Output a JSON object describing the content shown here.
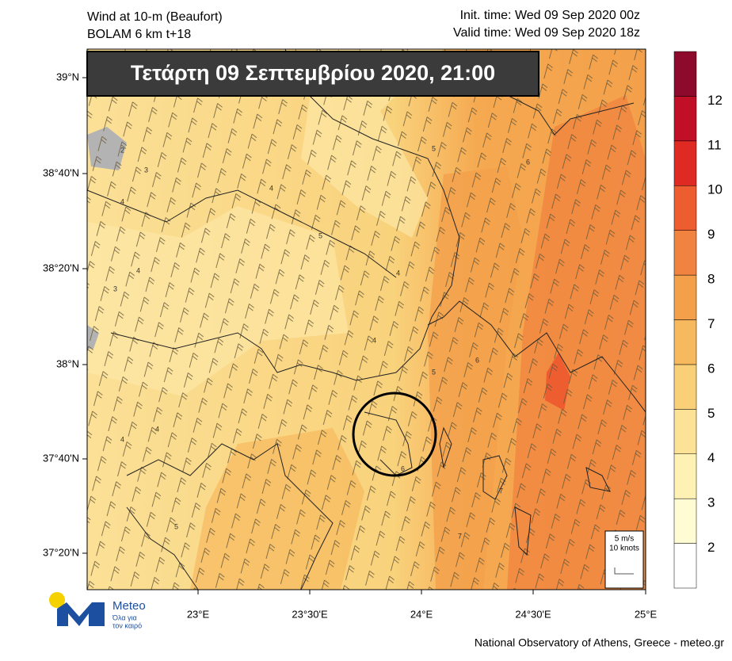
{
  "header": {
    "title": "Wind at 10-m (Beaufort)",
    "model": "BOLAM 6 km t+18",
    "init_time": "Init. time: Wed 09 Sep 2020 00z",
    "valid_time": "Valid time: Wed 09 Sep 2020 18z"
  },
  "banner": "Τετάρτη 09 Σεπτεμβρίου 2020, 21:00",
  "lat_ticks": [
    "39°N",
    "38°40'N",
    "38°20'N",
    "38°N",
    "37°40'N",
    "37°20'N"
  ],
  "lon_ticks": [
    "23°E",
    "23°30'E",
    "24°E",
    "24°30'E",
    "25°E"
  ],
  "colorbar": {
    "labels": [
      2,
      3,
      4,
      5,
      6,
      7,
      8,
      9,
      10,
      11,
      12
    ],
    "colors": [
      "#ffffff",
      "#fffbd2",
      "#fdf1b4",
      "#fbe296",
      "#f9cf78",
      "#f7b95e",
      "#f4a04b",
      "#f0833f",
      "#ee5d30",
      "#de2a22",
      "#c20f28",
      "#8e0a2c"
    ]
  },
  "contour_labels": [
    2,
    3,
    4,
    3,
    4,
    4,
    5,
    4,
    5,
    6,
    4,
    4,
    5,
    4,
    6,
    6,
    7,
    7,
    5
  ],
  "scale_box": {
    "speed": "5 m/s",
    "knots": "10 knots"
  },
  "logo": {
    "name": "Meteo",
    "tagline_1": "Όλα για",
    "tagline_2": "τον καιρό"
  },
  "footer": "National Observatory of Athens, Greece - meteo.gr"
}
